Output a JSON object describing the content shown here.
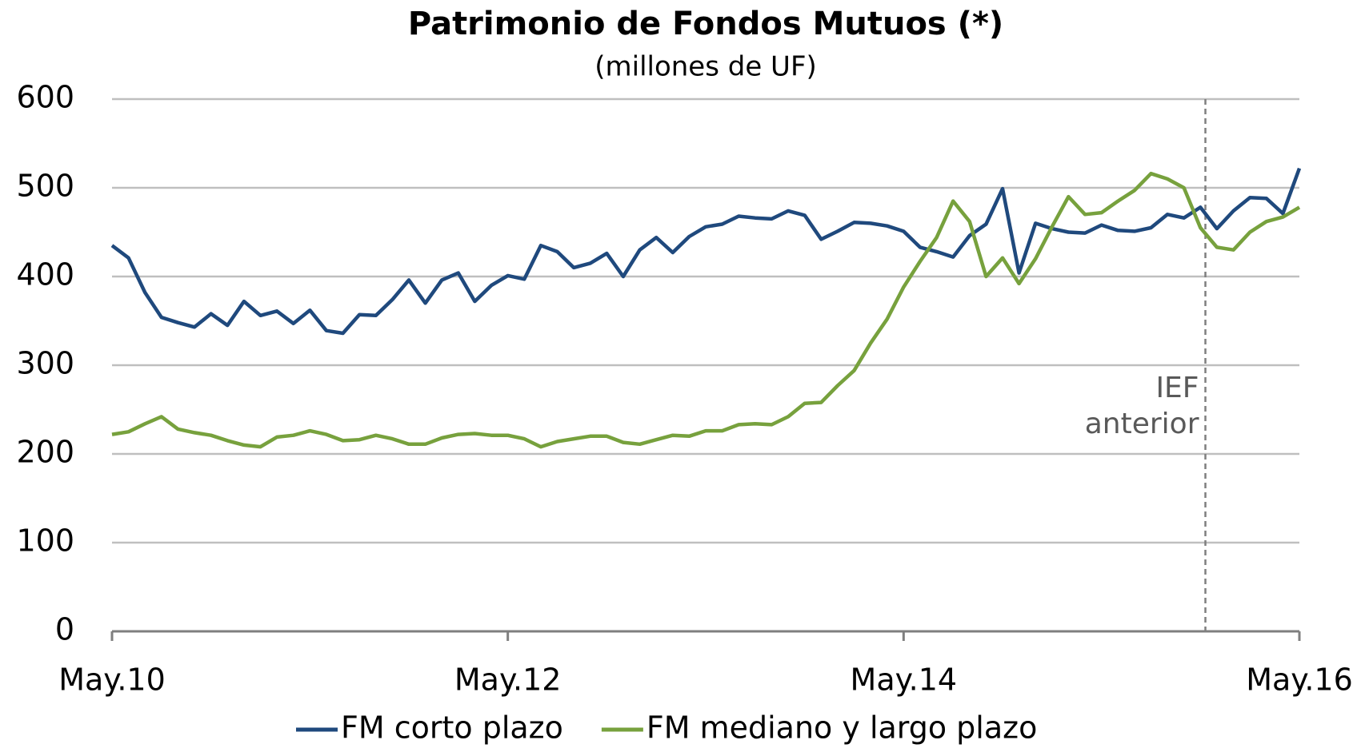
{
  "chart_data": {
    "type": "line",
    "title": "Patrimonio de Fondos Mutuos (*)",
    "subtitle": "(millones de UF)",
    "categories": [
      "May.10",
      null,
      null,
      null,
      null,
      null,
      null,
      null,
      null,
      null,
      null,
      null,
      null,
      null,
      null,
      null,
      null,
      null,
      null,
      null,
      null,
      null,
      null,
      null,
      "May.12",
      null,
      null,
      null,
      null,
      null,
      null,
      null,
      null,
      null,
      null,
      null,
      null,
      null,
      null,
      null,
      null,
      null,
      null,
      null,
      null,
      null,
      null,
      null,
      "May.14",
      null,
      null,
      null,
      null,
      null,
      null,
      null,
      null,
      null,
      null,
      null,
      null,
      null,
      null,
      null,
      null,
      null,
      null,
      null,
      null,
      null,
      null,
      null,
      "May.16"
    ],
    "series": [
      {
        "name": "FM corto plazo",
        "color": "#1f497d",
        "values": [
          435,
          421,
          382,
          354,
          348,
          343,
          358,
          345,
          372,
          356,
          361,
          347,
          362,
          339,
          336,
          357,
          356,
          374,
          396,
          370,
          396,
          404,
          372,
          390,
          401,
          397,
          435,
          428,
          410,
          415,
          426,
          400,
          430,
          444,
          427,
          445,
          456,
          459,
          468,
          466,
          465,
          474,
          469,
          442,
          451,
          461,
          460,
          457,
          451,
          433,
          428,
          422,
          446,
          459,
          499,
          404,
          460,
          454,
          450,
          449,
          458,
          452,
          451,
          455,
          470,
          466,
          478,
          454,
          474,
          489,
          488,
          471,
          522
        ]
      },
      {
        "name": "FM mediano y largo plazo",
        "color": "#77a13d",
        "values": [
          222,
          225,
          234,
          242,
          228,
          224,
          221,
          215,
          210,
          208,
          219,
          221,
          226,
          222,
          215,
          216,
          221,
          217,
          211,
          211,
          218,
          222,
          223,
          221,
          221,
          217,
          208,
          214,
          217,
          220,
          220,
          213,
          211,
          216,
          221,
          220,
          226,
          226,
          233,
          234,
          233,
          242,
          257,
          258,
          277,
          294,
          325,
          352,
          388,
          417,
          444,
          485,
          462,
          400,
          421,
          392,
          420,
          456,
          490,
          470,
          472,
          485,
          497,
          516,
          510,
          500,
          455,
          433,
          430,
          450,
          462,
          467,
          478
        ]
      }
    ],
    "ylim": [
      0,
      600
    ],
    "yticks": [
      0,
      100,
      200,
      300,
      400,
      500,
      600
    ],
    "grid": true,
    "legend": "bottom",
    "annotation": {
      "lines": [
        "IEF",
        "anterior"
      ],
      "x": 66.3
    }
  }
}
